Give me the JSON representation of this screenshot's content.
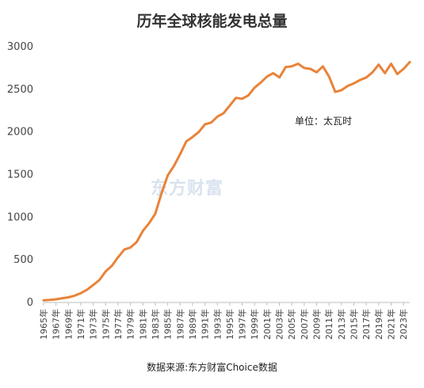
{
  "chart_data": {
    "type": "line",
    "title": "历年全球核能发电总量",
    "unit_label": "单位：太瓦时",
    "source": "数据来源:东方财富Choice数据",
    "watermark": "东方财富",
    "xlabel": "",
    "ylabel": "",
    "ylim": [
      0,
      3000
    ],
    "yticks": [
      0,
      500,
      1000,
      1500,
      2000,
      2500,
      3000
    ],
    "tick_labels": [
      "1965年",
      "1967年",
      "1969年",
      "1971年",
      "1973年",
      "1975年",
      "1977年",
      "1979年",
      "1981年",
      "1983年",
      "1985年",
      "1987年",
      "1989年",
      "1991年",
      "1993年",
      "1995年",
      "1997年",
      "1999年",
      "2001年",
      "2003年",
      "2005年",
      "2007年",
      "2009年",
      "2011年",
      "2013年",
      "2015年",
      "2017年",
      "2019年",
      "2021年",
      "2023年"
    ],
    "grid": false,
    "legend": "none",
    "line_color": "#E8833A",
    "series": [
      {
        "x": [
          1965,
          1966,
          1967,
          1968,
          1969,
          1970,
          1971,
          1972,
          1973,
          1974,
          1975,
          1976,
          1977,
          1978,
          1979,
          1980,
          1981,
          1982,
          1983,
          1984,
          1985,
          1986,
          1987,
          1988,
          1989,
          1990,
          1991,
          1992,
          1993,
          1994,
          1995,
          1996,
          1997,
          1998,
          1999,
          2000,
          2001,
          2002,
          2003,
          2004,
          2005,
          2006,
          2007,
          2008,
          2009,
          2010,
          2011,
          2012,
          2013,
          2014,
          2015,
          2016,
          2017,
          2018,
          2019,
          2020,
          2021,
          2022,
          2023,
          2024
        ],
        "values": [
          25,
          30,
          37,
          50,
          60,
          80,
          110,
          150,
          205,
          265,
          365,
          430,
          530,
          620,
          645,
          710,
          840,
          930,
          1040,
          1280,
          1490,
          1600,
          1740,
          1890,
          1940,
          2000,
          2090,
          2110,
          2180,
          2220,
          2310,
          2400,
          2390,
          2430,
          2520,
          2580,
          2650,
          2690,
          2640,
          2760,
          2770,
          2800,
          2750,
          2740,
          2700,
          2770,
          2650,
          2470,
          2490,
          2540,
          2570,
          2610,
          2640,
          2700,
          2790,
          2690,
          2800,
          2680,
          2740,
          2820
        ]
      }
    ]
  }
}
